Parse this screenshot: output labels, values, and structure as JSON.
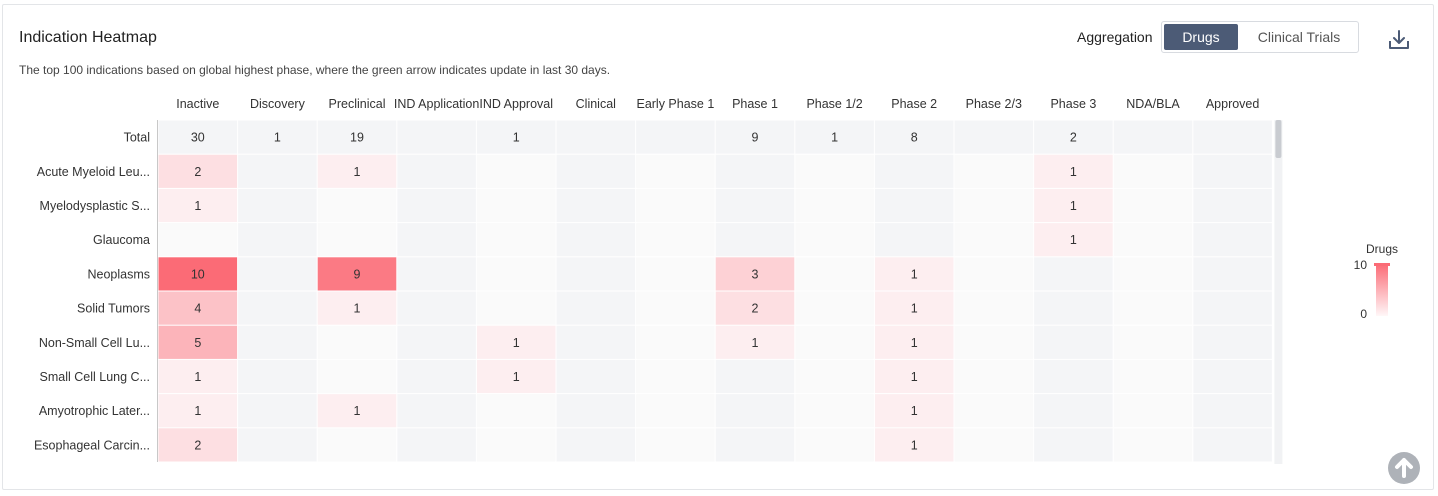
{
  "header": {
    "title": "Indication Heatmap",
    "subtitle": "The top 100 indications based on global highest phase, where the green arrow indicates update in last 30 days.",
    "aggregation_label": "Aggregation",
    "options": [
      "Drugs",
      "Clinical Trials"
    ],
    "selected_option": "Drugs"
  },
  "icons": {
    "download": "download-icon",
    "scroll_top": "arrow-up-circle-icon"
  },
  "colors": {
    "high": "#fb6b76",
    "low": "#fdeef0",
    "zero_even": "#f4f5f7",
    "zero_odd": "#fafafa",
    "selected_bg": "#4c5b76"
  },
  "chart_data": {
    "type": "heatmap",
    "title": "Indication Heatmap",
    "columns": [
      "Inactive",
      "Discovery",
      "Preclinical",
      "IND Application",
      "IND Approval",
      "Clinical",
      "Early Phase 1",
      "Phase 1",
      "Phase 1/2",
      "Phase 2",
      "Phase 2/3",
      "Phase 3",
      "NDA/BLA",
      "Approved"
    ],
    "rows": [
      {
        "label": "Total",
        "values": [
          30,
          1,
          19,
          null,
          1,
          null,
          null,
          9,
          1,
          8,
          null,
          2,
          null,
          null
        ]
      },
      {
        "label": "Acute Myeloid Leu...",
        "values": [
          2,
          null,
          1,
          null,
          null,
          null,
          null,
          null,
          null,
          null,
          null,
          1,
          null,
          null
        ]
      },
      {
        "label": "Myelodysplastic S...",
        "values": [
          1,
          null,
          null,
          null,
          null,
          null,
          null,
          null,
          null,
          null,
          null,
          1,
          null,
          null
        ]
      },
      {
        "label": "Glaucoma",
        "values": [
          null,
          null,
          null,
          null,
          null,
          null,
          null,
          null,
          null,
          null,
          null,
          1,
          null,
          null
        ]
      },
      {
        "label": "Neoplasms",
        "values": [
          10,
          null,
          9,
          null,
          null,
          null,
          null,
          3,
          null,
          1,
          null,
          null,
          null,
          null
        ]
      },
      {
        "label": "Solid Tumors",
        "values": [
          4,
          null,
          1,
          null,
          null,
          null,
          null,
          2,
          null,
          1,
          null,
          null,
          null,
          null
        ]
      },
      {
        "label": "Non-Small Cell Lu...",
        "values": [
          5,
          null,
          null,
          null,
          1,
          null,
          null,
          1,
          null,
          1,
          null,
          null,
          null,
          null
        ]
      },
      {
        "label": "Small Cell Lung C...",
        "values": [
          1,
          null,
          null,
          null,
          1,
          null,
          null,
          null,
          null,
          1,
          null,
          null,
          null,
          null
        ]
      },
      {
        "label": "Amyotrophic Later...",
        "values": [
          1,
          null,
          1,
          null,
          null,
          null,
          null,
          null,
          null,
          1,
          null,
          null,
          null,
          null
        ]
      },
      {
        "label": "Esophageal Carcin...",
        "values": [
          2,
          null,
          null,
          null,
          null,
          null,
          null,
          null,
          null,
          1,
          null,
          null,
          null,
          null
        ]
      }
    ],
    "legend": {
      "title": "Drugs",
      "max": 10,
      "min": 0,
      "max_label": "10",
      "min_label": "0"
    },
    "range": [
      0,
      10
    ]
  }
}
